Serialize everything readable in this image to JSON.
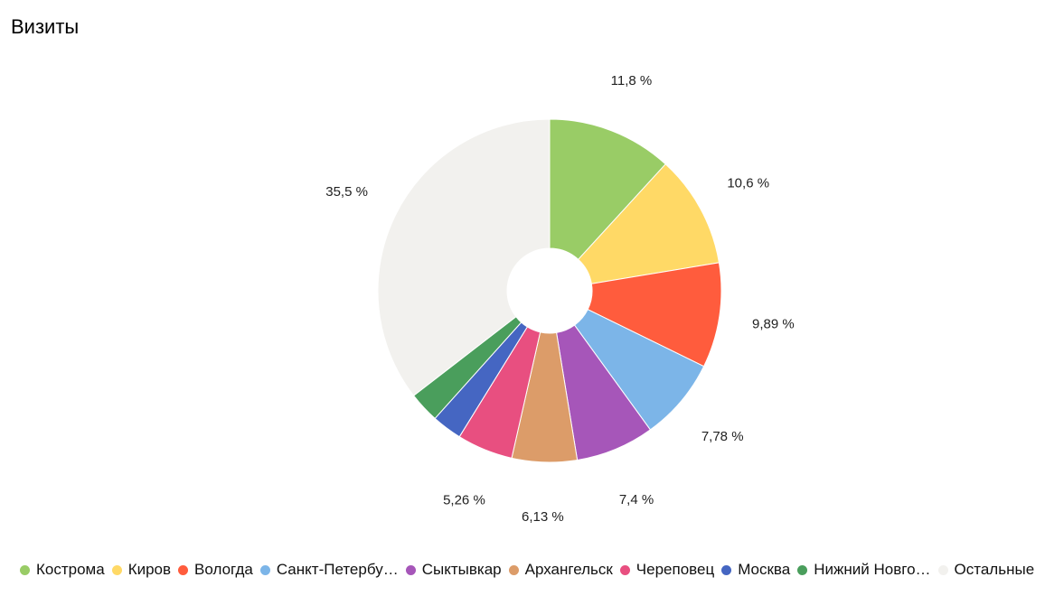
{
  "header": {
    "title": "Визиты"
  },
  "chart_data": {
    "type": "pie",
    "title": "Визиты",
    "donut": true,
    "legend_position": "bottom",
    "categories": [
      "Кострома",
      "Киров",
      "Вологда",
      "Санкт-Петербу…",
      "Сыктывкар",
      "Архангельск",
      "Череповец",
      "Москва",
      "Нижний Новго…",
      "Остальные"
    ],
    "values": [
      11.8,
      10.6,
      9.89,
      7.78,
      7.4,
      6.13,
      5.26,
      2.84,
      2.9,
      35.5
    ],
    "labels": [
      "11,8 %",
      "10,6 %",
      "9,89 %",
      "7,78 %",
      "7,4 %",
      "6,13 %",
      "5,26 %",
      "",
      "",
      "35,5 %"
    ],
    "colors": [
      "#99cc66",
      "#ffd966",
      "#ff5c3d",
      "#7cb5e8",
      "#a656b9",
      "#dc9c69",
      "#e84f80",
      "#4566c2",
      "#4a9e5c",
      "#f2f1ee"
    ]
  }
}
